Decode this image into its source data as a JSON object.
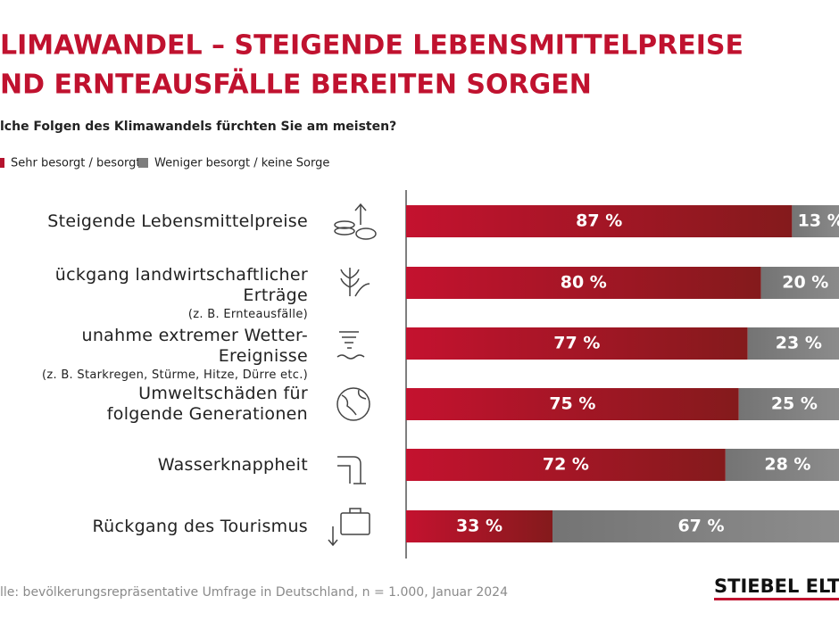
{
  "chart_data": {
    "type": "stacked-bar-horizontal",
    "title": [
      "LIMAWANDEL – STEIGENDE LEBENSMITTELPREISE",
      "ND ERNTEAUSFÄLLE BEREITEN SORGEN"
    ],
    "subtitle": "lche Folgen des Klimawandels fürchten Sie am meisten?",
    "categories": [
      "Steigende Lebensmittelpreise",
      "ückgang landwirtschaftlicher Erträge",
      "unahme extremer Wetter-Ereignisse",
      "Umweltschäden für\nfolgende Generationen",
      "Wasserknappheit",
      "Rückgang des Tourismus"
    ],
    "category_notes": [
      null,
      "(z. B. Ernteausfälle)",
      "(z. B. Starkregen, Stürme, Hitze, Dürre etc.)",
      null,
      null,
      null
    ],
    "series": [
      {
        "name": "Sehr besorgt / besorgt",
        "color": "#b5132e",
        "values": [
          87,
          80,
          77,
          75,
          72,
          33
        ],
        "value_labels": [
          "87 %",
          "80 %",
          "77 %",
          "75 %",
          "72 %",
          "33 %"
        ]
      },
      {
        "name": "Weniger besorgt / keine Sorge",
        "color": "#7d7d7d",
        "values": [
          13,
          20,
          23,
          25,
          28,
          67
        ],
        "value_labels": [
          "13 %",
          "20 %",
          "23 %",
          "25 %",
          "28 %",
          "67 %"
        ]
      }
    ],
    "xlim": [
      0,
      100
    ],
    "source": "lle: bevölkerungsrepräsentative Umfrage in Deutschland, n = 1.000, Januar 2024",
    "logo": "STIEBEL ELTRO"
  }
}
